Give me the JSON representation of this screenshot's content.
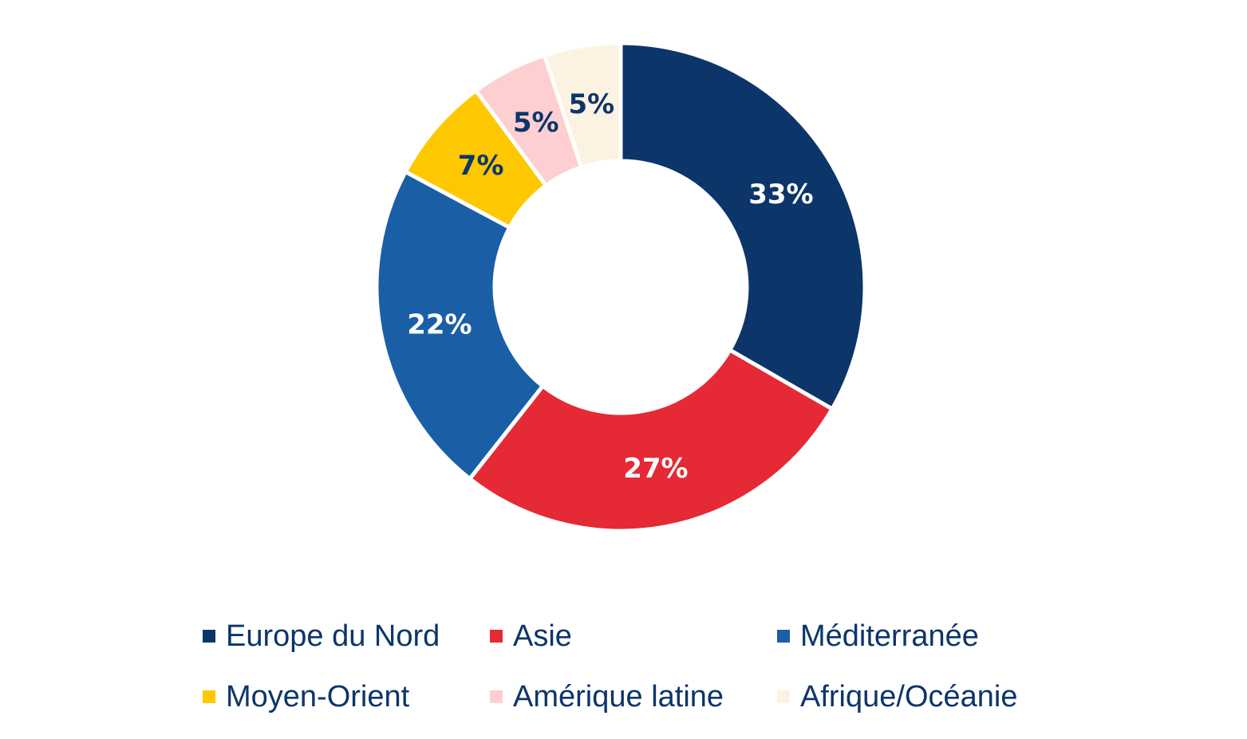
{
  "chart_data": {
    "type": "pie",
    "variant": "donut",
    "title": "",
    "categories": [
      "Europe du Nord",
      "Asie",
      "Méditerranée",
      "Moyen-Orient",
      "Amérique latine",
      "Afrique/Océanie"
    ],
    "values": [
      33,
      27,
      22,
      7,
      5,
      5
    ],
    "value_labels": [
      "33%",
      "27%",
      "22%",
      "7%",
      "5%",
      "5%"
    ],
    "colors": [
      "#0c356a",
      "#e52a35",
      "#1a5fa6",
      "#fec800",
      "#fdcfd0",
      "#fcf2e2"
    ],
    "label_colors": [
      "#ffffff",
      "#ffffff",
      "#ffffff",
      "#0c356a",
      "#0c356a",
      "#0c356a"
    ],
    "start": "12 o'clock",
    "direction": "clockwise",
    "legend_position": "bottom"
  },
  "legend": {
    "items": [
      {
        "label": "Europe du Nord",
        "color": "#0c356a"
      },
      {
        "label": "Asie",
        "color": "#e52a35"
      },
      {
        "label": "Méditerranée",
        "color": "#1a5fa6"
      },
      {
        "label": "Moyen-Orient",
        "color": "#fec800"
      },
      {
        "label": "Amérique latine",
        "color": "#fdcfd0"
      },
      {
        "label": "Afrique/Océanie",
        "color": "#fcf2e2"
      }
    ]
  }
}
